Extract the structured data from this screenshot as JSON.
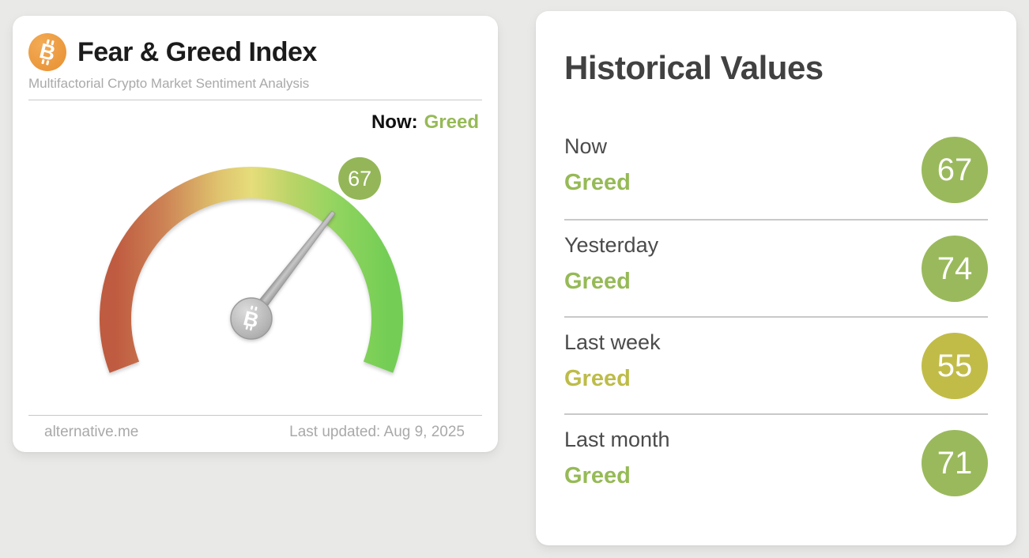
{
  "gauge_card": {
    "title": "Fear & Greed Index",
    "subtitle": "Multifactorial Crypto Market Sentiment Analysis",
    "now_label": "Now:",
    "now_classification": "Greed",
    "now_classification_color": "#96ba56",
    "footer_source": "alternative.me",
    "footer_updated": "Last updated: Aug 9, 2025",
    "btc_icon": "bitcoin-icon",
    "chart_data": {
      "type": "gauge",
      "value": 67,
      "min": 0,
      "max": 100,
      "sweep_degrees": 222,
      "classification": "Greed",
      "badge_color": "#94b658",
      "arc_stops": [
        {
          "offset": "0%",
          "color": "#bf5b40"
        },
        {
          "offset": "18%",
          "color": "#cd8355"
        },
        {
          "offset": "38%",
          "color": "#dfc36e"
        },
        {
          "offset": "50%",
          "color": "#e6dd7b"
        },
        {
          "offset": "64%",
          "color": "#bcd468"
        },
        {
          "offset": "82%",
          "color": "#90d45f"
        },
        {
          "offset": "100%",
          "color": "#74ce55"
        }
      ]
    }
  },
  "history_card": {
    "title": "Historical Values",
    "rows": [
      {
        "label": "Now",
        "classification": "Greed",
        "value": "67",
        "badge_color": "#9ab95c",
        "text_color": "#96ba56"
      },
      {
        "label": "Yesterday",
        "classification": "Greed",
        "value": "74",
        "badge_color": "#9ab95c",
        "text_color": "#96ba56"
      },
      {
        "label": "Last week",
        "classification": "Greed",
        "value": "55",
        "badge_color": "#c1bc48",
        "text_color": "#bdbc49"
      },
      {
        "label": "Last month",
        "classification": "Greed",
        "value": "71",
        "badge_color": "#9ab95c",
        "text_color": "#96ba56"
      }
    ]
  }
}
